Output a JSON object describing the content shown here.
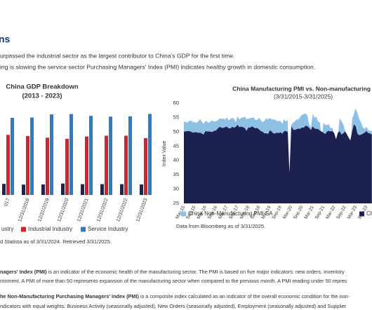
{
  "header": {
    "title": "ns"
  },
  "intro": [
    "urpassed the industrial sector as the largest contributor to China's GDP for the first time.",
    "ing is slowing the service sector Purchasing Managers' Index (PMI) indicates healthy growth in domestic consumption."
  ],
  "footnotes": [
    {
      "bold": "nagers' Index (PMI)",
      "text": " is an indicator of the economic health of the manufacturing sector. The PMI is based on five major indicators: new orders, inventory"
    },
    {
      "bold": "",
      "text": "ronment. A PMI of more than 50 represents expansion of the manufacturing sector when compared to the previous month. A PMI reading under 50 repres"
    },
    {
      "bold": "he Non-Manufacturing Purchasing Managers' Index (PMI)",
      "text": " is a composite index calculated as an indicator of the overall economic condition for the non-"
    },
    {
      "bold": "",
      "text": "ndicators with equal weights: Business Activity (seasonally adjusted), New Orders (seasonally adjusted), Employment (seasonally adjusted) and Supplier"
    }
  ],
  "chart_data": [
    {
      "type": "bar",
      "title": "China GDP Breakdown",
      "subtitle": "(2013 - 2023)",
      "source": "d Statista as of 3/31/2024. Retrieved 3/31/2025.",
      "categories": [
        "017",
        "12/31/2018",
        "12/31/2019",
        "12/31/2020",
        "12/31/2021",
        "12/31/2022",
        "12/31/2022",
        "12/31/2023"
      ],
      "ylim": [
        0,
        60
      ],
      "series": [
        {
          "name": "ustry",
          "color": "#1e2454",
          "values": [
            7.5,
            7.0,
            7.1,
            7.7,
            7.3,
            7.3,
            7.3,
            7.1
          ]
        },
        {
          "name": "Industrial Industry",
          "color": "#d0252f",
          "values": [
            40.5,
            39.7,
            38.6,
            37.8,
            39.4,
            39.9,
            39.9,
            38.3
          ]
        },
        {
          "name": "Service Industry",
          "color": "#2e7cc4",
          "values": [
            52.0,
            52.2,
            54.3,
            54.5,
            53.3,
            52.8,
            53.0,
            54.6
          ]
        }
      ]
    },
    {
      "type": "area",
      "title": "China Manufacturing PMI vs. Non-manufacturing I",
      "subtitle": "(3/31/2015-3/31/2025)",
      "ylabel": "Index Value",
      "source": "Data from Bloomberg as of 3/31/2025.",
      "ylim": [
        25,
        60
      ],
      "yticks": [
        25,
        30,
        35,
        40,
        45,
        50,
        55,
        60
      ],
      "categories": [
        "Mar-15",
        null,
        null,
        null,
        null,
        null,
        "Sep-15",
        null,
        null,
        null,
        null,
        null,
        "Mar-16",
        null,
        null,
        null,
        null,
        null,
        "Sep-16",
        null,
        null,
        null,
        null,
        null,
        "Mar-17",
        null,
        null,
        null,
        null,
        null,
        "Sep-17",
        null,
        null,
        null,
        null,
        null,
        "Mar-18",
        null,
        null,
        null,
        null,
        null,
        "Sep-18",
        null,
        null,
        null,
        null,
        null,
        "Mar-19",
        null,
        null,
        null,
        null,
        null,
        "Sep-19",
        null,
        null,
        null,
        null,
        null,
        "Mar-20",
        null,
        null,
        null,
        null,
        null,
        "Sep-20",
        null,
        null,
        null,
        null,
        null,
        "Mar-21",
        null,
        null,
        null,
        null,
        null,
        "Sep-21",
        null,
        null,
        null,
        null,
        null,
        "Mar-22",
        null,
        null,
        null,
        null,
        null,
        "Sep-22",
        null,
        null,
        null,
        null,
        null,
        "Mar-23",
        null,
        null,
        null,
        null,
        null,
        "Sep-23",
        null,
        null,
        null
      ],
      "series": [
        {
          "name": "China Non-Manufacturing PMI SA",
          "color": "#8ec0e6",
          "values": [
            53.7,
            53.4,
            53.2,
            53.8,
            53.9,
            53.4,
            53.4,
            53.1,
            53.6,
            54.4,
            53.5,
            52.7,
            53.8,
            53.5,
            53.1,
            53.7,
            53.9,
            53.5,
            53.7,
            54.0,
            54.7,
            54.5,
            54.6,
            54.2,
            55.1,
            54.0,
            54.5,
            54.9,
            54.5,
            53.4,
            55.4,
            54.3,
            54.8,
            55.0,
            55.3,
            54.4,
            54.6,
            54.8,
            54.9,
            55.0,
            54.0,
            54.2,
            54.9,
            53.9,
            53.4,
            53.8,
            54.7,
            54.3,
            54.8,
            54.3,
            54.3,
            54.2,
            53.7,
            53.8,
            53.7,
            52.8,
            54.4,
            53.5,
            54.1,
            29.6,
            52.3,
            53.2,
            53.6,
            54.4,
            54.2,
            55.2,
            55.9,
            56.2,
            56.4,
            55.7,
            52.4,
            51.4,
            56.3,
            54.9,
            55.2,
            53.5,
            53.3,
            47.5,
            53.2,
            52.4,
            52.3,
            52.7,
            51.1,
            51.6,
            48.4,
            41.9,
            47.8,
            54.7,
            53.8,
            52.6,
            50.6,
            48.7,
            46.7,
            41.6,
            54.4,
            56.3,
            58.2,
            56.4,
            54.5,
            53.2,
            51.5,
            51.0,
            51.7,
            50.6,
            50.2,
            50.4
          ]
        },
        {
          "name": "Chi",
          "color": "#1d2150",
          "values": [
            50.1,
            50.1,
            50.2,
            50.2,
            50.0,
            49.7,
            49.8,
            49.8,
            49.6,
            49.7,
            49.4,
            49.0,
            50.2,
            50.1,
            50.1,
            50.0,
            49.9,
            50.4,
            50.4,
            51.2,
            51.7,
            51.4,
            51.3,
            51.6,
            51.8,
            51.2,
            51.2,
            51.7,
            51.4,
            51.7,
            52.4,
            51.6,
            51.8,
            51.6,
            51.3,
            50.3,
            51.5,
            51.4,
            51.9,
            51.5,
            51.2,
            51.3,
            50.8,
            50.2,
            50.0,
            49.4,
            49.5,
            49.2,
            50.5,
            50.1,
            49.4,
            49.4,
            49.7,
            49.5,
            49.8,
            49.3,
            50.2,
            50.2,
            50.0,
            35.7,
            52.0,
            50.8,
            50.6,
            50.9,
            51.1,
            51.0,
            51.5,
            51.4,
            52.1,
            51.9,
            51.3,
            50.6,
            51.9,
            51.1,
            51.0,
            50.9,
            50.4,
            50.1,
            49.6,
            49.2,
            50.1,
            50.3,
            50.1,
            50.2,
            49.5,
            47.4,
            49.6,
            50.2,
            49.0,
            49.4,
            50.1,
            49.2,
            48.0,
            47.0,
            50.1,
            52.6,
            51.9,
            49.2,
            48.8,
            49.0,
            49.3,
            49.7,
            50.2,
            49.5,
            49.4,
            49.0
          ]
        }
      ]
    }
  ]
}
